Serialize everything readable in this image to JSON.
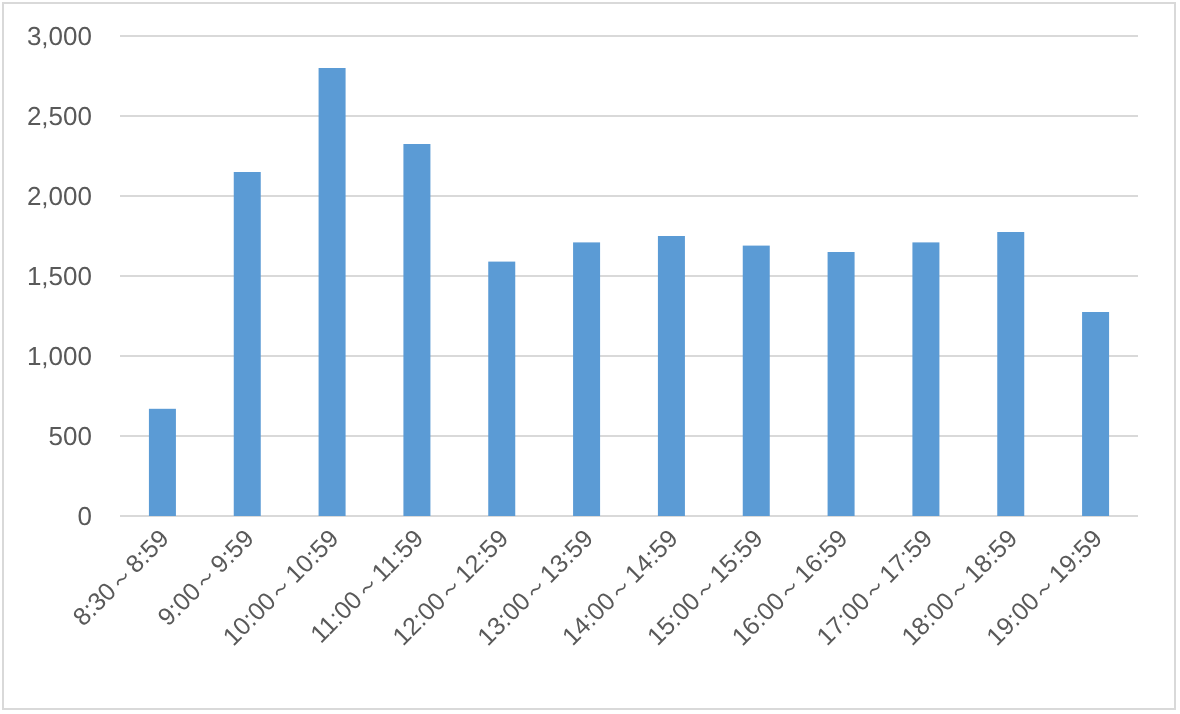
{
  "chart_data": {
    "type": "bar",
    "categories": [
      "8:30～8:59",
      "9:00～9:59",
      "10:00～10:59",
      "11:00～11:59",
      "12:00～12:59",
      "13:00～13:59",
      "14:00～14:59",
      "15:00～15:59",
      "16:00～16:59",
      "17:00～17:59",
      "18:00～18:59",
      "19:00～19:59"
    ],
    "values": [
      670,
      2150,
      2800,
      2325,
      1590,
      1710,
      1750,
      1690,
      1650,
      1710,
      1775,
      1275
    ],
    "color": "#5b9bd5",
    "ylim": [
      0,
      3000
    ],
    "yticks": [
      {
        "value": 0,
        "label": "0"
      },
      {
        "value": 500,
        "label": "500"
      },
      {
        "value": 1000,
        "label": "1,000"
      },
      {
        "value": 1500,
        "label": "1,500"
      },
      {
        "value": 2000,
        "label": "2,000"
      },
      {
        "value": 2500,
        "label": "2,500"
      },
      {
        "value": 3000,
        "label": "3,000"
      }
    ],
    "grid": "y"
  }
}
